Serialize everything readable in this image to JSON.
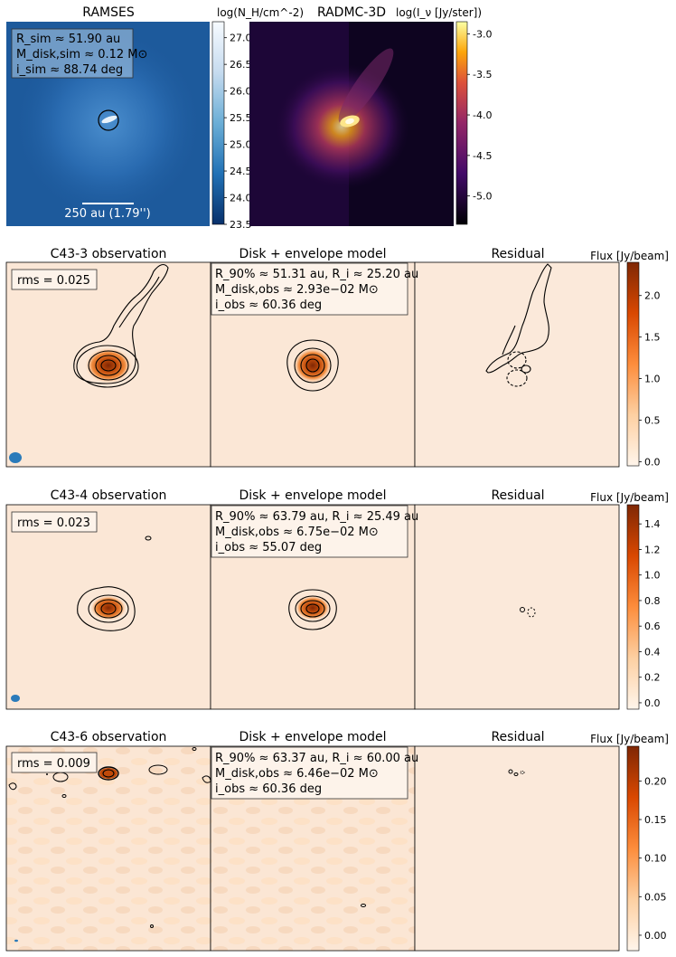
{
  "figure": {
    "top_row": {
      "ramses": {
        "title": "RAMSES",
        "colorbar_label": "log(N_H/cm^-2)",
        "colorbar_ticks": [
          "27.0",
          "26.5",
          "26.0",
          "25.5",
          "25.0",
          "24.5",
          "24.0",
          "23.5"
        ],
        "colorbar_range": [
          23.5,
          27.3
        ],
        "textbox": [
          "R_sim ≈ 51.90 au",
          "M_disk,sim ≈ 0.12 M⊙",
          "i_sim ≈ 88.74 deg"
        ],
        "scalebar_label": "250 au (1.79'')",
        "colors": {
          "map_dark": "#1a4f8c",
          "map_mid": "#2c6db3",
          "map_light": "#4d8cc9"
        }
      },
      "radmc": {
        "title": "RADMC-3D",
        "colorbar_label": "log(I_ν [Jy/ster])",
        "colorbar_ticks": [
          "-3.0",
          "-3.5",
          "-4.0",
          "-4.5",
          "-5.0"
        ],
        "colorbar_range": [
          -5.35,
          -2.85
        ]
      }
    },
    "rows": [
      {
        "obs_title": "C43-3 observation",
        "model_title": "Disk + envelope model",
        "resid_title": "Residual",
        "rms_label": "rms = 0.025",
        "model_box": [
          "R_90% ≈ 51.31 au, R_i ≈ 25.20 au",
          "M_disk,obs ≈ 2.93e−02 M⊙",
          "i_obs ≈ 60.36 deg"
        ],
        "colorbar_label": "Flux [Jy/beam]",
        "colorbar_ticks": [
          "2.0",
          "1.5",
          "1.0",
          "0.5",
          "0.0"
        ],
        "colorbar_range": [
          -0.05,
          2.4
        ]
      },
      {
        "obs_title": "C43-4 observation",
        "model_title": "Disk + envelope model",
        "resid_title": "Residual",
        "rms_label": "rms = 0.023",
        "model_box": [
          "R_90% ≈ 63.79 au, R_i ≈ 25.49 au",
          "M_disk,obs ≈ 6.75e−02 M⊙",
          "i_obs ≈ 55.07 deg"
        ],
        "colorbar_label": "Flux [Jy/beam]",
        "colorbar_ticks": [
          "1.4",
          "1.2",
          "1.0",
          "0.8",
          "0.6",
          "0.4",
          "0.2",
          "0.0"
        ],
        "colorbar_range": [
          -0.05,
          1.55
        ]
      },
      {
        "obs_title": "C43-6 observation",
        "model_title": "Disk + envelope model",
        "resid_title": "Residual",
        "rms_label": "rms = 0.009",
        "model_box": [
          "R_90% ≈ 63.37 au, R_i ≈ 60.00 au",
          "M_disk,obs ≈ 6.46e−02 M⊙",
          "i_obs ≈ 60.36 deg"
        ],
        "colorbar_label": "Flux [Jy/beam]",
        "colorbar_ticks": [
          "0.20",
          "0.15",
          "0.10",
          "0.05",
          "0.00"
        ],
        "colorbar_range": [
          -0.02,
          0.245
        ]
      }
    ]
  },
  "chart_data": [
    {
      "type": "heatmap",
      "title": "RAMSES",
      "colorbar_label": "log(N_H/cm^-2)",
      "colorbar_range": [
        23.5,
        27.3
      ],
      "annotations": [
        "R_sim ≈ 51.90 au",
        "M_disk,sim ≈ 0.12 M⊙",
        "i_sim ≈ 88.74 deg",
        "250 au (1.79'')"
      ]
    },
    {
      "type": "heatmap",
      "title": "RADMC-3D",
      "colorbar_label": "log(I_ν [Jy/ster])",
      "colorbar_range": [
        -5.35,
        -2.85
      ]
    },
    {
      "type": "heatmap",
      "title": "C43-3 observation",
      "rms": 0.025,
      "colorbar_label": "Flux [Jy/beam]",
      "colorbar_range": [
        0.0,
        2.4
      ]
    },
    {
      "type": "heatmap",
      "title": "Disk + envelope model",
      "R_90_au": 51.31,
      "R_i_au": 25.2,
      "M_disk_obs": 0.0293,
      "i_obs_deg": 60.36
    },
    {
      "type": "heatmap",
      "title": "Residual"
    },
    {
      "type": "heatmap",
      "title": "C43-4 observation",
      "rms": 0.023,
      "colorbar_label": "Flux [Jy/beam]",
      "colorbar_range": [
        0.0,
        1.55
      ]
    },
    {
      "type": "heatmap",
      "title": "Disk + envelope model",
      "R_90_au": 63.79,
      "R_i_au": 25.49,
      "M_disk_obs": 0.0675,
      "i_obs_deg": 55.07
    },
    {
      "type": "heatmap",
      "title": "Residual"
    },
    {
      "type": "heatmap",
      "title": "C43-6 observation",
      "rms": 0.009,
      "colorbar_label": "Flux [Jy/beam]",
      "colorbar_range": [
        -0.02,
        0.245
      ]
    },
    {
      "type": "heatmap",
      "title": "Disk + envelope model",
      "R_90_au": 63.37,
      "R_i_au": 60.0,
      "M_disk_obs": 0.0646,
      "i_obs_deg": 60.36
    },
    {
      "type": "heatmap",
      "title": "Residual"
    }
  ]
}
